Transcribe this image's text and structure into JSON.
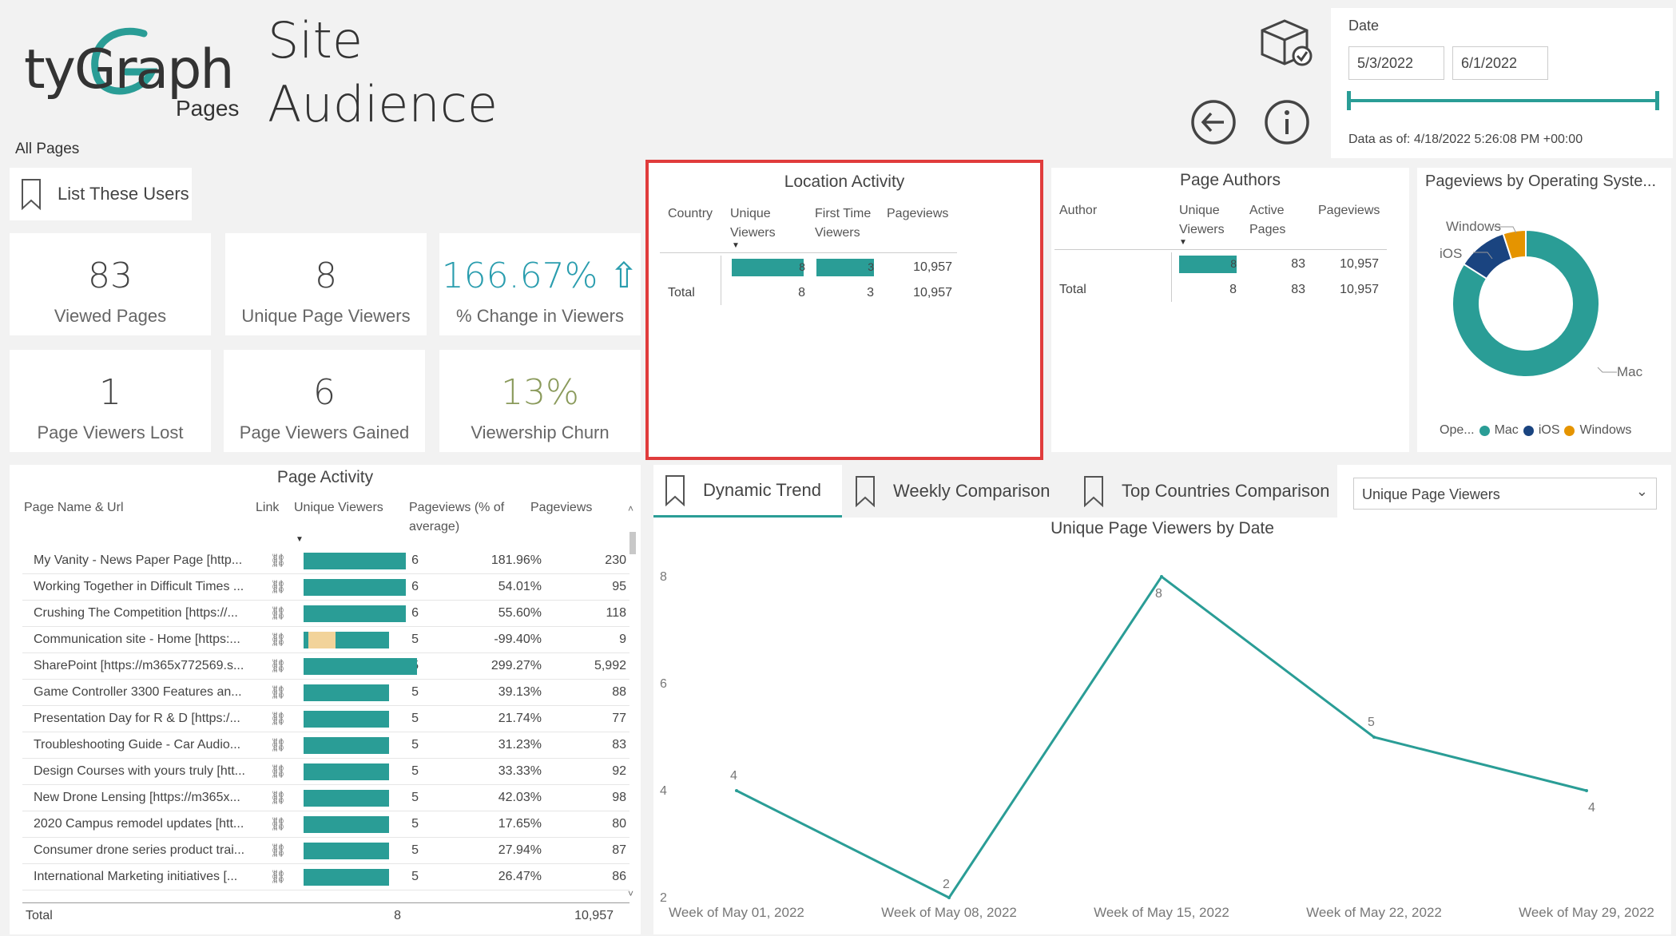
{
  "header": {
    "logo_text": "tyGraph",
    "logo_sub": "Pages",
    "title_line1": "Site",
    "title_line2": "Audience",
    "scope": "All Pages"
  },
  "list_users_label": "List These Users",
  "kpis": [
    {
      "value": "83",
      "label": "Viewed Pages"
    },
    {
      "value": "8",
      "label": "Unique Page Viewers"
    },
    {
      "value": "166.67% ⇧",
      "label": "% Change in Viewers"
    },
    {
      "value": "1",
      "label": "Page Viewers Lost"
    },
    {
      "value": "6",
      "label": "Page Viewers Gained"
    },
    {
      "value": "13%",
      "label": "Viewership Churn"
    }
  ],
  "date_filter": {
    "label": "Date",
    "start": "5/3/2022",
    "end": "6/1/2022",
    "data_as_of": "Data as of: 4/18/2022 5:26:08 PM +00:00"
  },
  "location_activity": {
    "title": "Location Activity",
    "columns": [
      "Country",
      "Unique\nViewers",
      "First Time\nViewers",
      "Pageviews"
    ],
    "row": {
      "unique": "8",
      "first": "3",
      "pageviews": "10,957"
    },
    "total": {
      "label": "Total",
      "unique": "8",
      "first": "3",
      "pageviews": "10,957"
    }
  },
  "page_authors": {
    "title": "Page Authors",
    "columns": [
      "Author",
      "Unique\nViewers",
      "Active\nPages",
      "Pageviews"
    ],
    "row": {
      "unique": "8",
      "active": "83",
      "pageviews": "10,957"
    },
    "total": {
      "label": "Total",
      "unique": "8",
      "active": "83",
      "pageviews": "10,957"
    }
  },
  "os_chart": {
    "title": "Pageviews by Operating Syste...",
    "legend_title": "Ope...",
    "labels": {
      "windows": "Windows",
      "ios": "iOS",
      "mac": "Mac"
    },
    "slices": [
      {
        "name": "Mac",
        "share": 0.84,
        "color": "#2a9d96"
      },
      {
        "name": "iOS",
        "share": 0.11,
        "color": "#1a4480"
      },
      {
        "name": "Windows",
        "share": 0.05,
        "color": "#e59400"
      }
    ]
  },
  "page_activity": {
    "title": "Page Activity",
    "columns": [
      "Page Name & Url",
      "Link",
      "Unique Viewers",
      "Pageviews (% of\naverage)",
      "Pageviews"
    ],
    "link_glyph": "⛓",
    "rows": [
      {
        "name": "My Vanity - News Paper Page [http...",
        "uv": 6,
        "pct": 181.96,
        "pct_text": "181.96%",
        "pv": "230"
      },
      {
        "name": "Working Together in Difficult Times ...",
        "uv": 6,
        "pct": 54.01,
        "pct_text": "54.01%",
        "pv": "95"
      },
      {
        "name": "Crushing The Competition [https://...",
        "uv": 6,
        "pct": 55.6,
        "pct_text": "55.60%",
        "pv": "118"
      },
      {
        "name": "Communication site - Home [https:...",
        "uv": 5,
        "pct": -99.4,
        "pct_text": "-99.40%",
        "pv": "9"
      },
      {
        "name": "SharePoint [https://m365x772569.s...",
        "uv": 5,
        "pct": 299.27,
        "pct_text": "299.27%",
        "pv": "5,992"
      },
      {
        "name": "Game Controller 3300 Features an...",
        "uv": 5,
        "pct": 39.13,
        "pct_text": "39.13%",
        "pv": "88"
      },
      {
        "name": "Presentation Day for R & D [https:/...",
        "uv": 5,
        "pct": 21.74,
        "pct_text": "21.74%",
        "pv": "77"
      },
      {
        "name": "Troubleshooting Guide - Car Audio...",
        "uv": 5,
        "pct": 31.23,
        "pct_text": "31.23%",
        "pv": "83"
      },
      {
        "name": "Design Courses with yours truly [htt...",
        "uv": 5,
        "pct": 33.33,
        "pct_text": "33.33%",
        "pv": "92"
      },
      {
        "name": "New Drone Lensing [https://m365x...",
        "uv": 5,
        "pct": 42.03,
        "pct_text": "42.03%",
        "pv": "98"
      },
      {
        "name": "2020 Campus remodel updates [htt...",
        "uv": 5,
        "pct": 17.65,
        "pct_text": "17.65%",
        "pv": "80"
      },
      {
        "name": "Consumer drone series product trai...",
        "uv": 5,
        "pct": 27.94,
        "pct_text": "27.94%",
        "pv": "87"
      },
      {
        "name": "International Marketing initiatives [...",
        "uv": 5,
        "pct": 26.47,
        "pct_text": "26.47%",
        "pv": "86"
      }
    ],
    "total": {
      "label": "Total",
      "uv": "8",
      "pv": "10,957"
    }
  },
  "tabs": [
    {
      "label": "Dynamic Trend"
    },
    {
      "label": "Weekly Comparison"
    },
    {
      "label": "Top Countries Comparison"
    }
  ],
  "measure_select": "Unique Page Viewers",
  "chart_data": {
    "type": "line",
    "title": "Unique Page Viewers by Date",
    "categories": [
      "Week of May 01, 2022",
      "Week of May 08, 2022",
      "Week of May 15, 2022",
      "Week of May 22, 2022",
      "Week of May 29, 2022"
    ],
    "values": [
      4,
      2,
      8,
      5,
      4
    ],
    "ylim": [
      2,
      8
    ],
    "yticks": [
      2,
      4,
      6,
      8
    ],
    "color": "#2a9d96"
  }
}
